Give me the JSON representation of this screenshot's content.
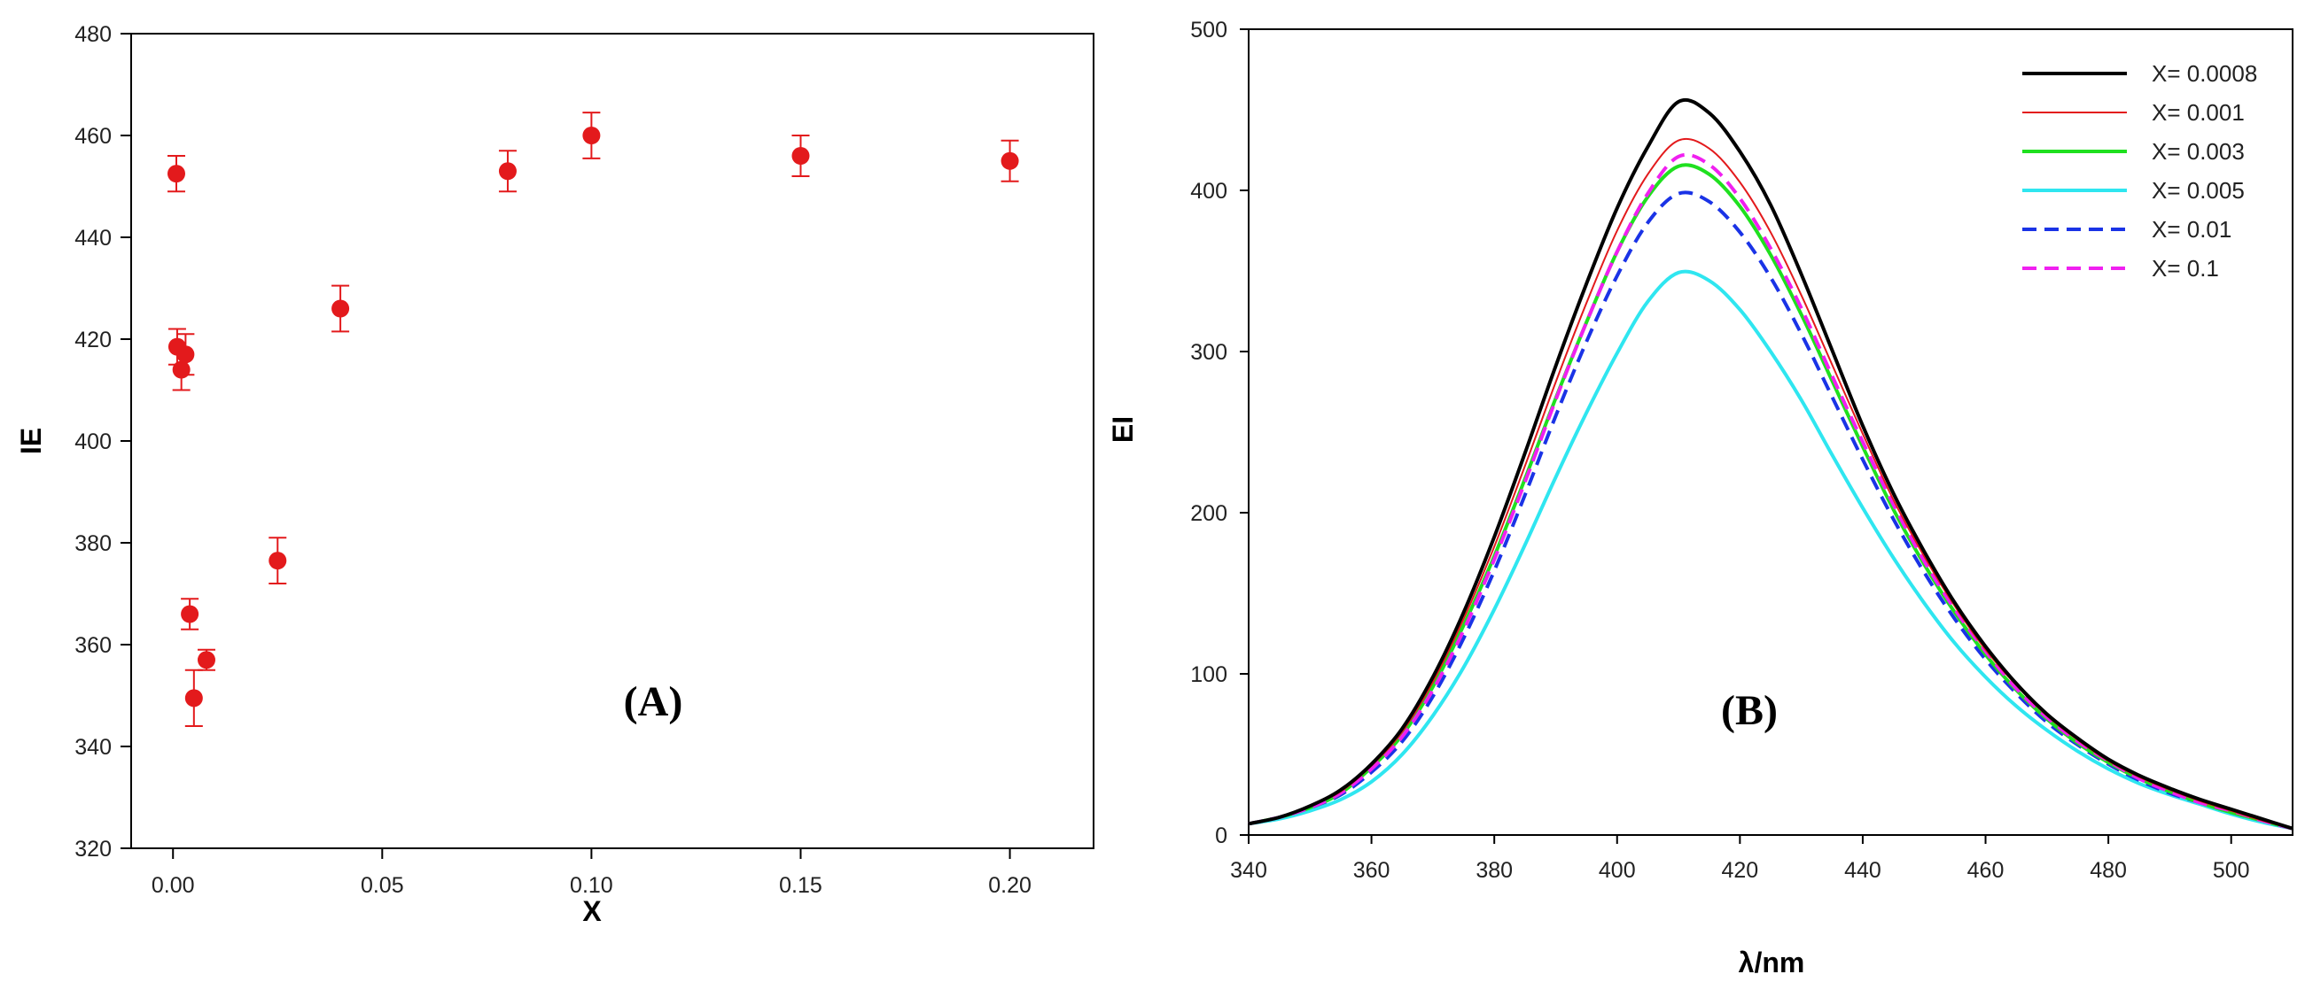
{
  "chart_data": [
    {
      "type": "scatter",
      "panel_label": "(A)",
      "xlabel": "X",
      "ylabel": "IE",
      "xlim": [
        -0.01,
        0.22
      ],
      "ylim": [
        320,
        480
      ],
      "xticks": [
        "0.00",
        "0.05",
        "0.10",
        "0.15",
        "0.20"
      ],
      "xtick_values": [
        0,
        0.05,
        0.1,
        0.15,
        0.2
      ],
      "yticks": [
        "320",
        "340",
        "360",
        "380",
        "400",
        "420",
        "440",
        "460",
        "480"
      ],
      "ytick_values": [
        320,
        340,
        360,
        380,
        400,
        420,
        440,
        460,
        480
      ],
      "grid": false,
      "color": "#e31a1c",
      "points": [
        {
          "x": 0.0008,
          "y": 452.5,
          "err": 3.5
        },
        {
          "x": 0.001,
          "y": 418.5,
          "err": 3.5
        },
        {
          "x": 0.002,
          "y": 414,
          "err": 4
        },
        {
          "x": 0.003,
          "y": 417,
          "err": 4
        },
        {
          "x": 0.004,
          "y": 366,
          "err": 3
        },
        {
          "x": 0.005,
          "y": 349.5,
          "err": 5.5
        },
        {
          "x": 0.008,
          "y": 357,
          "err": 2
        },
        {
          "x": 0.025,
          "y": 376.5,
          "err": 4.5
        },
        {
          "x": 0.04,
          "y": 426,
          "err": 4.5
        },
        {
          "x": 0.08,
          "y": 453,
          "err": 4
        },
        {
          "x": 0.1,
          "y": 460,
          "err": 4.5
        },
        {
          "x": 0.15,
          "y": 456,
          "err": 4
        },
        {
          "x": 0.2,
          "y": 455,
          "err": 4
        }
      ]
    },
    {
      "type": "line",
      "panel_label": "(B)",
      "xlabel": "λ/nm",
      "ylabel": "EI",
      "xlim": [
        340,
        510
      ],
      "ylim": [
        0,
        500
      ],
      "xticks": [
        "340",
        "360",
        "380",
        "400",
        "420",
        "440",
        "460",
        "480",
        "500"
      ],
      "xtick_values": [
        340,
        360,
        380,
        400,
        420,
        440,
        460,
        480,
        500
      ],
      "yticks": [
        "0",
        "100",
        "200",
        "300",
        "400",
        "500"
      ],
      "ytick_values": [
        0,
        100,
        200,
        300,
        400,
        500
      ],
      "grid": false,
      "legend_position": "top-right",
      "x": [
        340,
        345,
        350,
        355,
        360,
        365,
        370,
        375,
        380,
        385,
        390,
        395,
        400,
        405,
        410,
        415,
        420,
        425,
        430,
        435,
        440,
        445,
        450,
        455,
        460,
        465,
        470,
        475,
        480,
        485,
        490,
        495,
        500,
        505,
        510
      ],
      "series": [
        {
          "name": "X= 0.0008",
          "color": "#000000",
          "dash": "solid",
          "width": 4,
          "values": [
            7,
            11,
            18,
            28,
            44,
            66,
            98,
            138,
            185,
            237,
            291,
            342,
            389,
            427,
            455,
            448,
            424,
            391,
            348,
            301,
            254,
            212,
            176,
            144,
            117,
            94,
            75,
            60,
            47,
            37,
            29,
            22,
            16,
            10,
            4
          ]
        },
        {
          "name": "X= 0.001",
          "color": "#e31a1c",
          "dash": "solid",
          "width": 2,
          "values": [
            7,
            11,
            18,
            27,
            43,
            64,
            95,
            134,
            179,
            229,
            281,
            330,
            375,
            410,
            431,
            426,
            405,
            374,
            335,
            292,
            249,
            208,
            173,
            142,
            115,
            93,
            74,
            59,
            46,
            36,
            28,
            21,
            15,
            9,
            4
          ]
        },
        {
          "name": "X= 0.003",
          "color": "#1fe01f",
          "dash": "solid",
          "width": 4,
          "values": [
            7,
            11,
            17,
            26,
            42,
            62,
            92,
            130,
            173,
            221,
            271,
            318,
            362,
            396,
            415,
            410,
            390,
            360,
            323,
            282,
            241,
            202,
            168,
            138,
            112,
            90,
            72,
            57,
            45,
            35,
            27,
            20,
            14,
            9,
            4
          ]
        },
        {
          "name": "X= 0.005",
          "color": "#2fe6f0",
          "dash": "solid",
          "width": 4,
          "values": [
            7,
            10,
            15,
            22,
            33,
            50,
            74,
            104,
            140,
            180,
            222,
            262,
            299,
            331,
            349,
            344,
            326,
            300,
            270,
            236,
            203,
            172,
            144,
            119,
            98,
            80,
            65,
            52,
            41,
            32,
            25,
            19,
            13,
            8,
            4
          ]
        },
        {
          "name": "X= 0.01",
          "color": "#1a33e6",
          "dash": "dashed",
          "width": 4,
          "values": [
            7,
            11,
            17,
            25,
            39,
            58,
            86,
            122,
            164,
            211,
            260,
            306,
            347,
            380,
            398,
            393,
            374,
            346,
            311,
            272,
            233,
            196,
            163,
            134,
            109,
            88,
            70,
            56,
            44,
            34,
            26,
            20,
            14,
            9,
            4
          ]
        },
        {
          "name": "X= 0.1",
          "color": "#f020f0",
          "dash": "dashed",
          "width": 4,
          "values": [
            7,
            11,
            17,
            26,
            41,
            61,
            90,
            127,
            171,
            219,
            270,
            318,
            362,
            398,
            421,
            416,
            395,
            364,
            327,
            285,
            244,
            205,
            170,
            140,
            114,
            91,
            73,
            58,
            46,
            35,
            27,
            20,
            15,
            9,
            4
          ]
        }
      ]
    }
  ]
}
